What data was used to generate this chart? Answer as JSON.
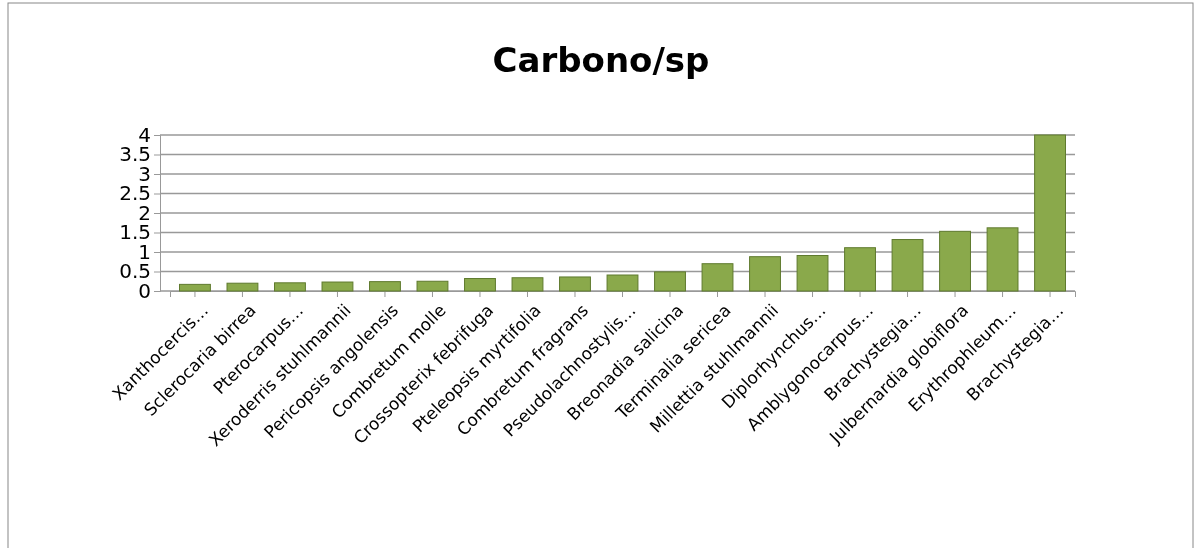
{
  "chart_data": {
    "type": "bar",
    "title": "Carbono/sp",
    "categories": [
      "Xanthocercis…",
      "Sclerocaria birrea",
      "Pterocarpus…",
      "Xeroderris stuhlmannii",
      "Pericopsis angolensis",
      "Combretum molle",
      "Crossopterix febrifuga",
      "Pteleopsis myrtifolia",
      "Combretum fragrans",
      "Pseudolachnostylis…",
      "Breonadia salicina",
      "Terminalia sericea",
      "Millettia stuhlmannii",
      "Diplorhynchus…",
      "Amblygonocarpus…",
      "Brachystegia…",
      "Julbernardia globiflora",
      "Erythrophleum…",
      "Brachystegia…"
    ],
    "values": [
      0.17,
      0.2,
      0.21,
      0.23,
      0.24,
      0.25,
      0.32,
      0.34,
      0.36,
      0.41,
      0.49,
      0.7,
      0.88,
      0.91,
      1.11,
      1.32,
      1.53,
      1.62,
      4.0
    ],
    "color": "#8aa94b",
    "ylim": [
      0,
      4
    ],
    "yticks": [
      0,
      0.5,
      1,
      1.5,
      2,
      2.5,
      3,
      3.5,
      4
    ],
    "grid": "y"
  }
}
